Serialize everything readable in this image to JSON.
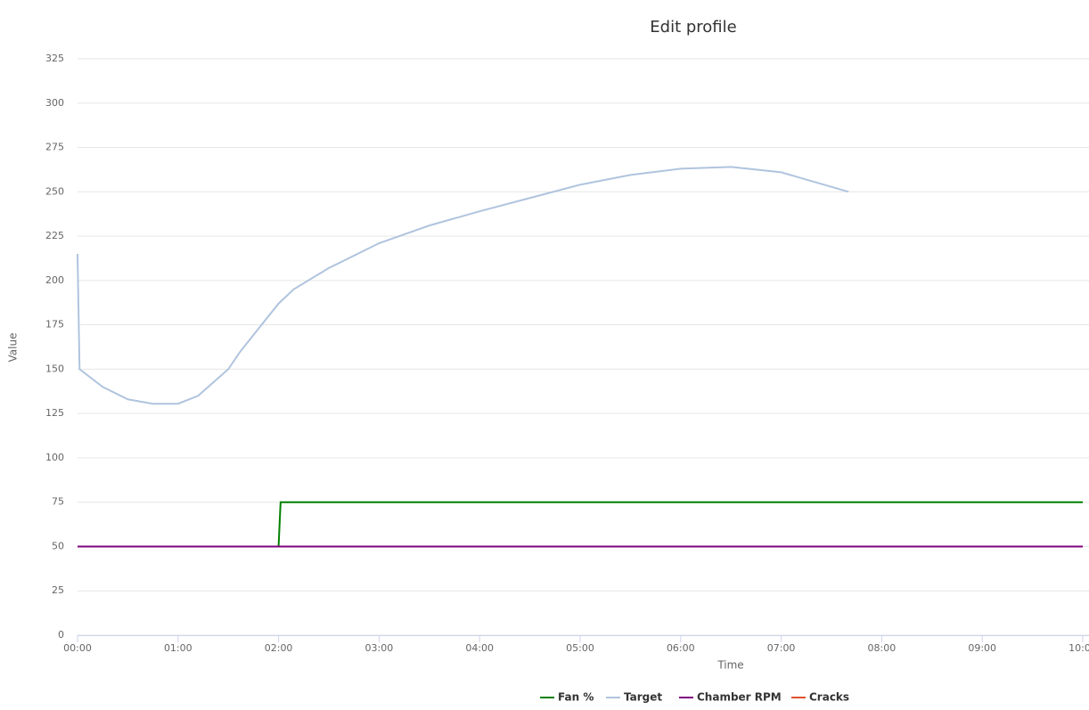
{
  "chart_data": {
    "type": "line",
    "title": "Edit profile",
    "x_label": "Time",
    "y_label": "Value",
    "xlim": [
      0,
      10
    ],
    "xticks": [
      {
        "value": 0,
        "label": "00:00"
      },
      {
        "value": 1,
        "label": "01:00"
      },
      {
        "value": 2,
        "label": "02:00"
      },
      {
        "value": 3,
        "label": "03:00"
      },
      {
        "value": 4,
        "label": "04:00"
      },
      {
        "value": 5,
        "label": "05:00"
      },
      {
        "value": 6,
        "label": "06:00"
      },
      {
        "value": 7,
        "label": "07:00"
      },
      {
        "value": 8,
        "label": "08:00"
      },
      {
        "value": 9,
        "label": "09:00"
      },
      {
        "value": 10,
        "label": "10:00"
      }
    ],
    "ylim": [
      0,
      325
    ],
    "yticks": [
      0,
      25,
      50,
      75,
      100,
      125,
      150,
      175,
      200,
      225,
      250,
      275,
      300,
      325
    ],
    "grid": true,
    "legend": "bottom",
    "series": [
      {
        "name": "Fan %",
        "color": "#008000",
        "x": [
          0,
          2,
          2.02,
          10
        ],
        "values": [
          50,
          50,
          75,
          75
        ]
      },
      {
        "name": "Target",
        "color": "#b0c4de",
        "x": [
          0,
          0.02,
          0.25,
          0.5,
          0.75,
          1,
          1.2,
          1.5,
          1.62,
          2,
          2.15,
          2.5,
          3,
          3.5,
          4,
          4.5,
          5,
          5.5,
          6,
          6.5,
          7,
          7.67
        ],
        "values": [
          215,
          150,
          140,
          133,
          130.5,
          130.5,
          135,
          150,
          160,
          187,
          195,
          207,
          221,
          231,
          239,
          246.5,
          254,
          259.5,
          263,
          264,
          261,
          250
        ]
      },
      {
        "name": "Chamber RPM",
        "color": "#800080",
        "x": [
          0,
          10
        ],
        "values": [
          50,
          50
        ]
      },
      {
        "name": "Cracks",
        "color": "#e0522a",
        "x": [],
        "values": []
      }
    ]
  }
}
